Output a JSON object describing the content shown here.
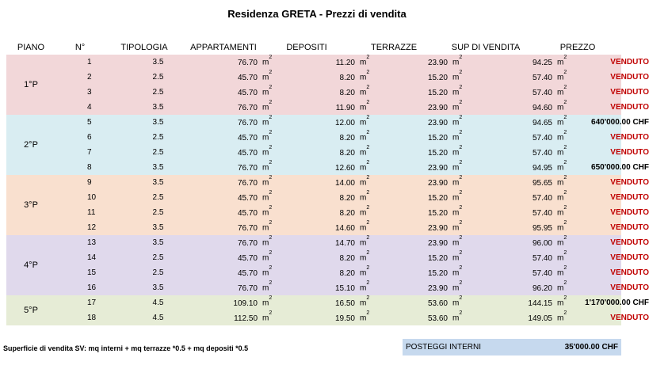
{
  "title": "Residenza GRETA - Prezzi di vendita",
  "headers": {
    "piano": "PIANO",
    "n": "N°",
    "tipologia": "TIPOLOGIA",
    "appartamenti": "APPARTAMENTI",
    "depositi": "DEPOSITI",
    "terrazze": "TERRAZZE",
    "sup": "SUP DI VENDITA",
    "prezzo": "PREZZO"
  },
  "unit_base": "m",
  "unit_exp": "2",
  "colors": {
    "p1": "#f2d7d9",
    "p2": "#d9edf2",
    "p3": "#f9e0cf",
    "p4": "#e0d9ec",
    "p5": "#e6ecd6",
    "sold": "#c00000",
    "posteggi_bg": "#c6d9ee"
  },
  "floors": [
    {
      "label": "1°P",
      "color": "#f2d7d9",
      "rows": [
        {
          "n": "1",
          "tip": "3.5",
          "app": "76.70",
          "dep": "11.20",
          "ter": "23.90",
          "sup": "94.25",
          "prezzo": "VENDUTO",
          "sold": true
        },
        {
          "n": "2",
          "tip": "2.5",
          "app": "45.70",
          "dep": "8.20",
          "ter": "15.20",
          "sup": "57.40",
          "prezzo": "VENDUTO",
          "sold": true
        },
        {
          "n": "3",
          "tip": "2.5",
          "app": "45.70",
          "dep": "8.20",
          "ter": "15.20",
          "sup": "57.40",
          "prezzo": "VENDUTO",
          "sold": true
        },
        {
          "n": "4",
          "tip": "3.5",
          "app": "76.70",
          "dep": "11.90",
          "ter": "23.90",
          "sup": "94.60",
          "prezzo": "VENDUTO",
          "sold": true
        }
      ]
    },
    {
      "label": "2°P",
      "color": "#d9edf2",
      "rows": [
        {
          "n": "5",
          "tip": "3.5",
          "app": "76.70",
          "dep": "12.00",
          "ter": "23.90",
          "sup": "94.65",
          "prezzo": "640'000.00 CHF",
          "sold": false
        },
        {
          "n": "6",
          "tip": "2.5",
          "app": "45.70",
          "dep": "8.20",
          "ter": "15.20",
          "sup": "57.40",
          "prezzo": "VENDUTO",
          "sold": true
        },
        {
          "n": "7",
          "tip": "2.5",
          "app": "45.70",
          "dep": "8.20",
          "ter": "15.20",
          "sup": "57.40",
          "prezzo": "VENDUTO",
          "sold": true
        },
        {
          "n": "8",
          "tip": "3.5",
          "app": "76.70",
          "dep": "12.60",
          "ter": "23.90",
          "sup": "94.95",
          "prezzo": "650'000.00 CHF",
          "sold": false
        }
      ]
    },
    {
      "label": "3°P",
      "color": "#f9e0cf",
      "rows": [
        {
          "n": "9",
          "tip": "3.5",
          "app": "76.70",
          "dep": "14.00",
          "ter": "23.90",
          "sup": "95.65",
          "prezzo": "VENDUTO",
          "sold": true
        },
        {
          "n": "10",
          "tip": "2.5",
          "app": "45.70",
          "dep": "8.20",
          "ter": "15.20",
          "sup": "57.40",
          "prezzo": "VENDUTO",
          "sold": true
        },
        {
          "n": "11",
          "tip": "2.5",
          "app": "45.70",
          "dep": "8.20",
          "ter": "15.20",
          "sup": "57.40",
          "prezzo": "VENDUTO",
          "sold": true
        },
        {
          "n": "12",
          "tip": "3.5",
          "app": "76.70",
          "dep": "14.60",
          "ter": "23.90",
          "sup": "95.95",
          "prezzo": "VENDUTO",
          "sold": true
        }
      ]
    },
    {
      "label": "4°P",
      "color": "#e0d9ec",
      "rows": [
        {
          "n": "13",
          "tip": "3.5",
          "app": "76.70",
          "dep": "14.70",
          "ter": "23.90",
          "sup": "96.00",
          "prezzo": "VENDUTO",
          "sold": true
        },
        {
          "n": "14",
          "tip": "2.5",
          "app": "45.70",
          "dep": "8.20",
          "ter": "15.20",
          "sup": "57.40",
          "prezzo": "VENDUTO",
          "sold": true
        },
        {
          "n": "15",
          "tip": "2.5",
          "app": "45.70",
          "dep": "8.20",
          "ter": "15.20",
          "sup": "57.40",
          "prezzo": "VENDUTO",
          "sold": true
        },
        {
          "n": "16",
          "tip": "3.5",
          "app": "76.70",
          "dep": "15.10",
          "ter": "23.90",
          "sup": "96.20",
          "prezzo": "VENDUTO",
          "sold": true
        }
      ]
    },
    {
      "label": "5°P",
      "color": "#e6ecd6",
      "rows": [
        {
          "n": "17",
          "tip": "4.5",
          "app": "109.10",
          "dep": "16.50",
          "ter": "53.60",
          "sup": "144.15",
          "prezzo": "1'170'000.00 CHF",
          "sold": false
        },
        {
          "n": "18",
          "tip": "4.5",
          "app": "112.50",
          "dep": "19.50",
          "ter": "53.60",
          "sup": "149.05",
          "prezzo": "VENDUTO",
          "sold": true
        }
      ]
    }
  ],
  "footnote": "Superficie di vendita SV: mq interni + mq terrazze *0.5 + mq depositi *0.5",
  "posteggi": {
    "label": "POSTEGGI INTERNI",
    "value": "35'000.00 CHF"
  }
}
